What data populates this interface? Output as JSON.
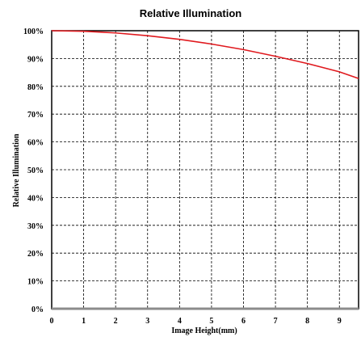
{
  "chart_data": {
    "type": "line",
    "title": "Relative Illumination",
    "xlabel": "Image Height(mm)",
    "ylabel": "Relative Illumination",
    "xlim": [
      0,
      9.6
    ],
    "ylim": [
      0,
      100
    ],
    "x_ticks": [
      "0",
      "1",
      "2",
      "3",
      "4",
      "5",
      "6",
      "7",
      "8",
      "9"
    ],
    "y_ticks": [
      "0%",
      "10%",
      "20%",
      "30%",
      "40%",
      "50%",
      "60%",
      "70%",
      "80%",
      "90%",
      "100%"
    ],
    "grid": true,
    "series": [
      {
        "color": "#e0191e",
        "x": [
          0,
          1,
          2,
          3,
          4,
          5,
          6,
          7,
          8,
          9,
          9.6
        ],
        "y": [
          100,
          99.8,
          99.2,
          98.2,
          96.9,
          95.2,
          93.2,
          90.8,
          88.2,
          85.2,
          82.8
        ]
      }
    ]
  }
}
